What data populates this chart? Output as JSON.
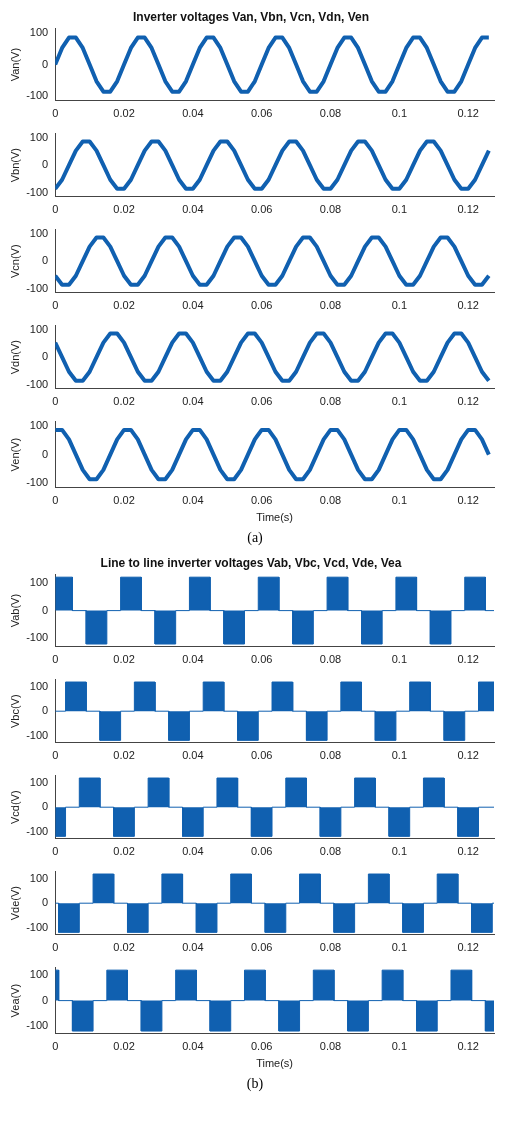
{
  "chart_data": [
    {
      "type": "line",
      "title": "Inverter voltages Van, Vbn, Vcn, Vdn, Ven",
      "ylabel": "Van(V)",
      "color": "#1060b0",
      "xlim": [
        0,
        0.1275
      ],
      "ylim": [
        -115,
        115
      ],
      "xticks": [
        0,
        0.02,
        0.04,
        0.06,
        0.08,
        0.1,
        0.12
      ],
      "yticks": [
        -100,
        0,
        100
      ],
      "x": [
        0,
        0.002,
        0.004,
        0.006,
        0.008,
        0.01,
        0.012,
        0.014,
        0.016,
        0.018,
        0.02,
        0.022,
        0.024,
        0.026,
        0.028,
        0.03,
        0.032,
        0.034,
        0.036,
        0.038,
        0.04,
        0.042,
        0.044,
        0.046,
        0.048,
        0.05,
        0.052,
        0.054,
        0.056,
        0.058,
        0.06,
        0.062,
        0.064,
        0.066,
        0.068,
        0.07,
        0.072,
        0.074,
        0.076,
        0.078,
        0.08,
        0.082,
        0.084,
        0.086,
        0.088,
        0.09,
        0.092,
        0.094,
        0.096,
        0.098,
        0.1,
        0.102,
        0.104,
        0.106,
        0.108,
        0.11,
        0.112,
        0.114,
        0.116,
        0.118,
        0.12,
        0.122,
        0.124,
        0.126
      ],
      "values": [
        0,
        53,
        86,
        86,
        53,
        0,
        -53,
        -86,
        -86,
        -53,
        0,
        53,
        86,
        86,
        53,
        0,
        -53,
        -86,
        -86,
        -53,
        0,
        53,
        86,
        86,
        53,
        0,
        -53,
        -86,
        -86,
        -53,
        0,
        53,
        86,
        86,
        53,
        0,
        -53,
        -86,
        -86,
        -53,
        0,
        53,
        86,
        86,
        53,
        0,
        -53,
        -86,
        -86,
        -53,
        0,
        53,
        86,
        86,
        53,
        0,
        -53,
        -86,
        -86,
        -53,
        0,
        53,
        86,
        86
      ]
    },
    {
      "type": "line",
      "ylabel": "Vbn(V)",
      "color": "#1060b0",
      "xlim": [
        0,
        0.1275
      ],
      "ylim": [
        -115,
        115
      ],
      "xticks": [
        0,
        0.02,
        0.04,
        0.06,
        0.08,
        0.1,
        0.12
      ],
      "yticks": [
        -100,
        0,
        100
      ],
      "x": [
        0,
        0.002,
        0.004,
        0.006,
        0.008,
        0.01,
        0.012,
        0.014,
        0.016,
        0.018,
        0.02,
        0.022,
        0.024,
        0.026,
        0.028,
        0.03,
        0.032,
        0.034,
        0.036,
        0.038,
        0.04,
        0.042,
        0.044,
        0.046,
        0.048,
        0.05,
        0.052,
        0.054,
        0.056,
        0.058,
        0.06,
        0.062,
        0.064,
        0.066,
        0.068,
        0.07,
        0.072,
        0.074,
        0.076,
        0.078,
        0.08,
        0.082,
        0.084,
        0.086,
        0.088,
        0.09,
        0.092,
        0.094,
        0.096,
        0.098,
        0.1,
        0.102,
        0.104,
        0.106,
        0.108,
        0.11,
        0.112,
        0.114,
        0.116,
        0.118,
        0.12,
        0.122,
        0.124,
        0.126
      ],
      "values": [
        -86,
        -53,
        0,
        53,
        86,
        86,
        53,
        0,
        -53,
        -86,
        -86,
        -53,
        0,
        53,
        86,
        86,
        53,
        0,
        -53,
        -86,
        -86,
        -53,
        0,
        53,
        86,
        86,
        53,
        0,
        -53,
        -86,
        -86,
        -53,
        0,
        53,
        86,
        86,
        53,
        0,
        -53,
        -86,
        -86,
        -53,
        0,
        53,
        86,
        86,
        53,
        0,
        -53,
        -86,
        -86,
        -53,
        0,
        53,
        86,
        86,
        53,
        0,
        -53,
        -86,
        -86,
        -53,
        0,
        53
      ]
    },
    {
      "type": "line",
      "ylabel": "Vcn(V)",
      "color": "#1060b0",
      "xlim": [
        0,
        0.1275
      ],
      "ylim": [
        -115,
        115
      ],
      "xticks": [
        0,
        0.02,
        0.04,
        0.06,
        0.08,
        0.1,
        0.12
      ],
      "yticks": [
        -100,
        0,
        100
      ],
      "x": [
        0,
        0.002,
        0.004,
        0.006,
        0.008,
        0.01,
        0.012,
        0.014,
        0.016,
        0.018,
        0.02,
        0.022,
        0.024,
        0.026,
        0.028,
        0.03,
        0.032,
        0.034,
        0.036,
        0.038,
        0.04,
        0.042,
        0.044,
        0.046,
        0.048,
        0.05,
        0.052,
        0.054,
        0.056,
        0.058,
        0.06,
        0.062,
        0.064,
        0.066,
        0.068,
        0.07,
        0.072,
        0.074,
        0.076,
        0.078,
        0.08,
        0.082,
        0.084,
        0.086,
        0.088,
        0.09,
        0.092,
        0.094,
        0.096,
        0.098,
        0.1,
        0.102,
        0.104,
        0.106,
        0.108,
        0.11,
        0.112,
        0.114,
        0.116,
        0.118,
        0.12,
        0.122,
        0.124,
        0.126
      ],
      "values": [
        -53,
        -86,
        -86,
        -53,
        0,
        53,
        86,
        86,
        53,
        0,
        -53,
        -86,
        -86,
        -53,
        0,
        53,
        86,
        86,
        53,
        0,
        -53,
        -86,
        -86,
        -53,
        0,
        53,
        86,
        86,
        53,
        0,
        -53,
        -86,
        -86,
        -53,
        0,
        53,
        86,
        86,
        53,
        0,
        -53,
        -86,
        -86,
        -53,
        0,
        53,
        86,
        86,
        53,
        0,
        -53,
        -86,
        -86,
        -53,
        0,
        53,
        86,
        86,
        53,
        0,
        -53,
        -86,
        -86,
        -53
      ]
    },
    {
      "type": "line",
      "ylabel": "Vdn(V)",
      "color": "#1060b0",
      "xlim": [
        0,
        0.1275
      ],
      "ylim": [
        -115,
        115
      ],
      "xticks": [
        0,
        0.02,
        0.04,
        0.06,
        0.08,
        0.1,
        0.12
      ],
      "yticks": [
        -100,
        0,
        100
      ],
      "x": [
        0,
        0.002,
        0.004,
        0.006,
        0.008,
        0.01,
        0.012,
        0.014,
        0.016,
        0.018,
        0.02,
        0.022,
        0.024,
        0.026,
        0.028,
        0.03,
        0.032,
        0.034,
        0.036,
        0.038,
        0.04,
        0.042,
        0.044,
        0.046,
        0.048,
        0.05,
        0.052,
        0.054,
        0.056,
        0.058,
        0.06,
        0.062,
        0.064,
        0.066,
        0.068,
        0.07,
        0.072,
        0.074,
        0.076,
        0.078,
        0.08,
        0.082,
        0.084,
        0.086,
        0.088,
        0.09,
        0.092,
        0.094,
        0.096,
        0.098,
        0.1,
        0.102,
        0.104,
        0.106,
        0.108,
        0.11,
        0.112,
        0.114,
        0.116,
        0.118,
        0.12,
        0.122,
        0.124,
        0.126
      ],
      "values": [
        53,
        0,
        -53,
        -86,
        -86,
        -53,
        0,
        53,
        86,
        86,
        53,
        0,
        -53,
        -86,
        -86,
        -53,
        0,
        53,
        86,
        86,
        53,
        0,
        -53,
        -86,
        -86,
        -53,
        0,
        53,
        86,
        86,
        53,
        0,
        -53,
        -86,
        -86,
        -53,
        0,
        53,
        86,
        86,
        53,
        0,
        -53,
        -86,
        -86,
        -53,
        0,
        53,
        86,
        86,
        53,
        0,
        -53,
        -86,
        -86,
        -53,
        0,
        53,
        86,
        86,
        53,
        0,
        -53,
        -86
      ]
    },
    {
      "type": "line",
      "ylabel": "Ven(V)",
      "xlabel": "Time(s)",
      "annotations": [
        "(a)"
      ],
      "color": "#1060b0",
      "xlim": [
        0,
        0.1275
      ],
      "ylim": [
        -115,
        115
      ],
      "xticks": [
        0,
        0.02,
        0.04,
        0.06,
        0.08,
        0.1,
        0.12
      ],
      "yticks": [
        -100,
        0,
        100
      ],
      "x": [
        0,
        0.002,
        0.004,
        0.006,
        0.008,
        0.01,
        0.012,
        0.014,
        0.016,
        0.018,
        0.02,
        0.022,
        0.024,
        0.026,
        0.028,
        0.03,
        0.032,
        0.034,
        0.036,
        0.038,
        0.04,
        0.042,
        0.044,
        0.046,
        0.048,
        0.05,
        0.052,
        0.054,
        0.056,
        0.058,
        0.06,
        0.062,
        0.064,
        0.066,
        0.068,
        0.07,
        0.072,
        0.074,
        0.076,
        0.078,
        0.08,
        0.082,
        0.084,
        0.086,
        0.088,
        0.09,
        0.092,
        0.094,
        0.096,
        0.098,
        0.1,
        0.102,
        0.104,
        0.106,
        0.108,
        0.11,
        0.112,
        0.114,
        0.116,
        0.118,
        0.12,
        0.122,
        0.124,
        0.126
      ],
      "values": [
        86,
        86,
        53,
        0,
        -53,
        -86,
        -86,
        -53,
        0,
        53,
        86,
        86,
        53,
        0,
        -53,
        -86,
        -86,
        -53,
        0,
        53,
        86,
        86,
        53,
        0,
        -53,
        -86,
        -86,
        -53,
        0,
        53,
        86,
        86,
        53,
        0,
        -53,
        -86,
        -86,
        -53,
        0,
        53,
        86,
        86,
        53,
        0,
        -53,
        -86,
        -86,
        -53,
        0,
        53,
        86,
        86,
        53,
        0,
        -53,
        -86,
        -86,
        -53,
        0,
        53,
        86,
        86,
        53,
        0
      ]
    },
    {
      "type": "area",
      "title": "Line to line inverter voltages Vab, Vbc, Vcd, Vde, Vea",
      "ylabel": "Vab(V)",
      "color": "#1060b0",
      "xlim": [
        0,
        0.1275
      ],
      "ylim": [
        -130,
        130
      ],
      "xticks": [
        0,
        0.02,
        0.04,
        0.06,
        0.08,
        0.1,
        0.12
      ],
      "yticks": [
        -100,
        0,
        100
      ],
      "x": [
        0,
        0.005,
        0.005,
        0.009,
        0.009,
        0.015,
        0.015,
        0.019,
        0.019,
        0.025,
        0.025,
        0.029,
        0.029,
        0.035,
        0.035,
        0.039,
        0.039,
        0.045,
        0.045,
        0.049,
        0.049,
        0.055,
        0.055,
        0.059,
        0.059,
        0.065,
        0.065,
        0.069,
        0.069,
        0.075,
        0.075,
        0.079,
        0.079,
        0.085,
        0.085,
        0.089,
        0.089,
        0.095,
        0.095,
        0.099,
        0.099,
        0.105,
        0.105,
        0.109,
        0.109,
        0.115,
        0.115,
        0.119,
        0.119,
        0.125,
        0.125,
        0.1275
      ],
      "values": [
        120,
        120,
        0,
        0,
        -120,
        -120,
        0,
        0,
        120,
        120,
        0,
        0,
        -120,
        -120,
        0,
        0,
        120,
        120,
        0,
        0,
        -120,
        -120,
        0,
        0,
        120,
        120,
        0,
        0,
        -120,
        -120,
        0,
        0,
        120,
        120,
        0,
        0,
        -120,
        -120,
        0,
        0,
        120,
        120,
        0,
        0,
        -120,
        -120,
        0,
        0,
        120,
        120,
        0,
        0
      ]
    },
    {
      "type": "area",
      "ylabel": "Vbc(V)",
      "color": "#1060b0",
      "xlim": [
        0,
        0.1275
      ],
      "ylim": [
        -130,
        130
      ],
      "xticks": [
        0,
        0.02,
        0.04,
        0.06,
        0.08,
        0.1,
        0.12
      ],
      "yticks": [
        -100,
        0,
        100
      ],
      "x": [
        0,
        0.003,
        0.003,
        0.009,
        0.009,
        0.013,
        0.013,
        0.019,
        0.019,
        0.023,
        0.023,
        0.029,
        0.029,
        0.033,
        0.033,
        0.039,
        0.039,
        0.043,
        0.043,
        0.049,
        0.049,
        0.053,
        0.053,
        0.059,
        0.059,
        0.063,
        0.063,
        0.069,
        0.069,
        0.073,
        0.073,
        0.079,
        0.079,
        0.083,
        0.083,
        0.089,
        0.089,
        0.093,
        0.093,
        0.099,
        0.099,
        0.103,
        0.103,
        0.109,
        0.109,
        0.113,
        0.113,
        0.119,
        0.119,
        0.123,
        0.123,
        0.1275
      ],
      "values": [
        0,
        0,
        120,
        120,
        0,
        0,
        -120,
        -120,
        0,
        0,
        120,
        120,
        0,
        0,
        -120,
        -120,
        0,
        0,
        120,
        120,
        0,
        0,
        -120,
        -120,
        0,
        0,
        120,
        120,
        0,
        0,
        -120,
        -120,
        0,
        0,
        120,
        120,
        0,
        0,
        -120,
        -120,
        0,
        0,
        120,
        120,
        0,
        0,
        -120,
        -120,
        0,
        0,
        120,
        120
      ]
    },
    {
      "type": "area",
      "ylabel": "Vcd(V)",
      "color": "#1060b0",
      "xlim": [
        0,
        0.1275
      ],
      "ylim": [
        -130,
        130
      ],
      "xticks": [
        0,
        0.02,
        0.04,
        0.06,
        0.08,
        0.1,
        0.12
      ],
      "yticks": [
        -100,
        0,
        100
      ],
      "x": [
        0,
        0.003,
        0.003,
        0.007,
        0.007,
        0.013,
        0.013,
        0.017,
        0.017,
        0.023,
        0.023,
        0.027,
        0.027,
        0.033,
        0.033,
        0.037,
        0.037,
        0.043,
        0.043,
        0.047,
        0.047,
        0.053,
        0.053,
        0.057,
        0.057,
        0.063,
        0.063,
        0.067,
        0.067,
        0.073,
        0.073,
        0.077,
        0.077,
        0.083,
        0.083,
        0.087,
        0.087,
        0.093,
        0.093,
        0.097,
        0.097,
        0.103,
        0.103,
        0.107,
        0.107,
        0.113,
        0.113,
        0.117,
        0.117,
        0.123,
        0.123,
        0.1275
      ],
      "values": [
        -120,
        -120,
        0,
        0,
        120,
        120,
        0,
        0,
        -120,
        -120,
        0,
        0,
        120,
        120,
        0,
        0,
        -120,
        -120,
        0,
        0,
        120,
        120,
        0,
        0,
        -120,
        -120,
        0,
        0,
        120,
        120,
        0,
        0,
        -120,
        -120,
        0,
        0,
        120,
        120,
        0,
        0,
        -120,
        -120,
        0,
        0,
        120,
        120,
        0,
        0,
        -120,
        -120,
        0,
        0
      ]
    },
    {
      "type": "area",
      "ylabel": "Vde(V)",
      "color": "#1060b0",
      "xlim": [
        0,
        0.1275
      ],
      "ylim": [
        -130,
        130
      ],
      "xticks": [
        0,
        0.02,
        0.04,
        0.06,
        0.08,
        0.1,
        0.12
      ],
      "yticks": [
        -100,
        0,
        100
      ],
      "x": [
        0,
        0.001,
        0.001,
        0.007,
        0.007,
        0.011,
        0.011,
        0.017,
        0.017,
        0.021,
        0.021,
        0.027,
        0.027,
        0.031,
        0.031,
        0.037,
        0.037,
        0.041,
        0.041,
        0.047,
        0.047,
        0.051,
        0.051,
        0.057,
        0.057,
        0.061,
        0.061,
        0.067,
        0.067,
        0.071,
        0.071,
        0.077,
        0.077,
        0.081,
        0.081,
        0.087,
        0.087,
        0.091,
        0.091,
        0.097,
        0.097,
        0.101,
        0.101,
        0.107,
        0.107,
        0.111,
        0.111,
        0.117,
        0.117,
        0.121,
        0.121,
        0.127,
        0.127,
        0.1275
      ],
      "values": [
        0,
        0,
        -120,
        -120,
        0,
        0,
        120,
        120,
        0,
        0,
        -120,
        -120,
        0,
        0,
        120,
        120,
        0,
        0,
        -120,
        -120,
        0,
        0,
        120,
        120,
        0,
        0,
        -120,
        -120,
        0,
        0,
        120,
        120,
        0,
        0,
        -120,
        -120,
        0,
        0,
        120,
        120,
        0,
        0,
        -120,
        -120,
        0,
        0,
        120,
        120,
        0,
        0,
        -120,
        -120,
        0,
        0
      ]
    },
    {
      "type": "area",
      "ylabel": "Vea(V)",
      "xlabel": "Time(s)",
      "annotations": [
        "(b)"
      ],
      "color": "#1060b0",
      "xlim": [
        0,
        0.1275
      ],
      "ylim": [
        -130,
        130
      ],
      "xticks": [
        0,
        0.02,
        0.04,
        0.06,
        0.08,
        0.1,
        0.12
      ],
      "yticks": [
        -100,
        0,
        100
      ],
      "x": [
        0,
        0.001,
        0.001,
        0.005,
        0.005,
        0.011,
        0.011,
        0.015,
        0.015,
        0.021,
        0.021,
        0.025,
        0.025,
        0.031,
        0.031,
        0.035,
        0.035,
        0.041,
        0.041,
        0.045,
        0.045,
        0.051,
        0.051,
        0.055,
        0.055,
        0.061,
        0.061,
        0.065,
        0.065,
        0.071,
        0.071,
        0.075,
        0.075,
        0.081,
        0.081,
        0.085,
        0.085,
        0.091,
        0.091,
        0.095,
        0.095,
        0.101,
        0.101,
        0.105,
        0.105,
        0.111,
        0.111,
        0.115,
        0.115,
        0.121,
        0.121,
        0.125,
        0.125,
        0.1275
      ],
      "values": [
        120,
        120,
        0,
        0,
        -120,
        -120,
        0,
        0,
        120,
        120,
        0,
        0,
        -120,
        -120,
        0,
        0,
        120,
        120,
        0,
        0,
        -120,
        -120,
        0,
        0,
        120,
        120,
        0,
        0,
        -120,
        -120,
        0,
        0,
        120,
        120,
        0,
        0,
        -120,
        -120,
        0,
        0,
        120,
        120,
        0,
        0,
        -120,
        -120,
        0,
        0,
        120,
        120,
        0,
        0,
        -120,
        -120
      ]
    }
  ]
}
